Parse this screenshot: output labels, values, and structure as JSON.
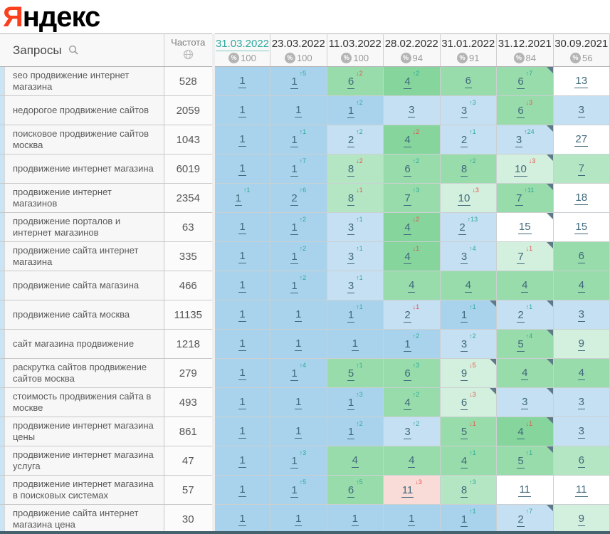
{
  "logo": {
    "ya": "Я",
    "rest": "ндекс"
  },
  "colors": {
    "logo_red": "#fc3f1d",
    "active_date_teal": "#2fa99f",
    "change_up_green": "#2aab97",
    "change_down_red": "#e2564b",
    "top1_blue": "#a9d3ec",
    "top3_light_blue": "#c5e0f3",
    "top10_green": "#98dcab",
    "pale_green": "#d3efdd",
    "drop_pink": "#f9dcd8",
    "scrollbar_dark": "#44616e"
  },
  "table": {
    "queries_header": "Запросы",
    "frequency_header": "Частота",
    "date_columns": [
      {
        "date": "31.03.2022",
        "score": "100",
        "active": true
      },
      {
        "date": "23.03.2022",
        "score": "100",
        "active": false
      },
      {
        "date": "11.03.2022",
        "score": "100",
        "active": false
      },
      {
        "date": "28.02.2022",
        "score": "94",
        "active": false
      },
      {
        "date": "31.01.2022",
        "score": "91",
        "active": false
      },
      {
        "date": "31.12.2021",
        "score": "84",
        "active": false
      },
      {
        "date": "30.09.2021",
        "score": "56",
        "active": false
      }
    ],
    "rows": [
      {
        "query": "seo продвижение интернет магазина",
        "frequency": "528",
        "cells": [
          {
            "p": "1",
            "bg": "b1"
          },
          {
            "p": "1",
            "ch": "5",
            "dir": "up",
            "bg": "b1"
          },
          {
            "p": "6",
            "ch": "2",
            "dir": "down",
            "bg": "g1"
          },
          {
            "p": "4",
            "ch": "2",
            "dir": "up",
            "bg": "g0"
          },
          {
            "p": "6",
            "bg": "g1"
          },
          {
            "p": "6",
            "ch": "7",
            "dir": "up",
            "bg": "g1",
            "corner": true
          },
          {
            "p": "13",
            "bg": "w"
          }
        ]
      },
      {
        "query": "недорогое продвижение сайтов",
        "frequency": "2059",
        "cells": [
          {
            "p": "1",
            "bg": "b1"
          },
          {
            "p": "1",
            "bg": "b1"
          },
          {
            "p": "1",
            "ch": "2",
            "dir": "up",
            "bg": "b1"
          },
          {
            "p": "3",
            "bg": "b2"
          },
          {
            "p": "3",
            "ch": "3",
            "dir": "up",
            "bg": "b2"
          },
          {
            "p": "6",
            "ch": "3",
            "dir": "down",
            "bg": "g1"
          },
          {
            "p": "3",
            "bg": "b2"
          }
        ]
      },
      {
        "query": "поисковое продвижение сайтов москва",
        "frequency": "1043",
        "cells": [
          {
            "p": "1",
            "bg": "b1"
          },
          {
            "p": "1",
            "ch": "1",
            "dir": "up",
            "bg": "b1"
          },
          {
            "p": "2",
            "ch": "2",
            "dir": "up",
            "bg": "b2"
          },
          {
            "p": "4",
            "ch": "2",
            "dir": "down",
            "bg": "g0"
          },
          {
            "p": "2",
            "ch": "1",
            "dir": "up",
            "bg": "b2"
          },
          {
            "p": "3",
            "ch": "24",
            "dir": "up",
            "bg": "b2",
            "corner": true
          },
          {
            "p": "27",
            "bg": "w"
          }
        ]
      },
      {
        "query": "продвижение интернет магазина",
        "frequency": "6019",
        "cells": [
          {
            "p": "1",
            "bg": "b1"
          },
          {
            "p": "1",
            "ch": "7",
            "dir": "up",
            "bg": "b1"
          },
          {
            "p": "8",
            "ch": "2",
            "dir": "down",
            "bg": "g2"
          },
          {
            "p": "6",
            "ch": "2",
            "dir": "up",
            "bg": "g1"
          },
          {
            "p": "8",
            "ch": "2",
            "dir": "up",
            "bg": "g1"
          },
          {
            "p": "10",
            "ch": "3",
            "dir": "down",
            "bg": "g3",
            "corner": true
          },
          {
            "p": "7",
            "bg": "g2"
          }
        ]
      },
      {
        "query": "продвижение интернет магазинов",
        "frequency": "2354",
        "cells": [
          {
            "p": "1",
            "ch": "1",
            "dir": "up",
            "bg": "b1"
          },
          {
            "p": "2",
            "ch": "6",
            "dir": "up",
            "bg": "b1"
          },
          {
            "p": "8",
            "ch": "1",
            "dir": "down",
            "bg": "g2"
          },
          {
            "p": "7",
            "ch": "3",
            "dir": "up",
            "bg": "g1"
          },
          {
            "p": "10",
            "ch": "3",
            "dir": "down",
            "bg": "g3"
          },
          {
            "p": "7",
            "ch": "11",
            "dir": "up",
            "bg": "g1",
            "corner": true
          },
          {
            "p": "18",
            "bg": "w"
          }
        ]
      },
      {
        "query": "продвижение порталов и интернет магазинов",
        "frequency": "63",
        "cells": [
          {
            "p": "1",
            "bg": "b1"
          },
          {
            "p": "1",
            "ch": "2",
            "dir": "up",
            "bg": "b1"
          },
          {
            "p": "3",
            "ch": "1",
            "dir": "up",
            "bg": "b2"
          },
          {
            "p": "4",
            "ch": "2",
            "dir": "down",
            "bg": "g0"
          },
          {
            "p": "2",
            "ch": "13",
            "dir": "up",
            "bg": "b2"
          },
          {
            "p": "15",
            "bg": "w",
            "corner": true
          },
          {
            "p": "15",
            "bg": "w"
          }
        ]
      },
      {
        "query": "продвижение сайта интернет магазина",
        "frequency": "335",
        "cells": [
          {
            "p": "1",
            "bg": "b1"
          },
          {
            "p": "1",
            "ch": "2",
            "dir": "up",
            "bg": "b1"
          },
          {
            "p": "3",
            "ch": "1",
            "dir": "up",
            "bg": "b2"
          },
          {
            "p": "4",
            "ch": "1",
            "dir": "down",
            "bg": "g0"
          },
          {
            "p": "3",
            "ch": "4",
            "dir": "up",
            "bg": "b2"
          },
          {
            "p": "7",
            "ch": "1",
            "dir": "down",
            "bg": "g3",
            "corner": true
          },
          {
            "p": "6",
            "bg": "g1"
          }
        ]
      },
      {
        "query": "продвижение сайта магазина",
        "frequency": "466",
        "cells": [
          {
            "p": "1",
            "bg": "b1"
          },
          {
            "p": "1",
            "ch": "2",
            "dir": "up",
            "bg": "b1"
          },
          {
            "p": "3",
            "ch": "1",
            "dir": "up",
            "bg": "b2"
          },
          {
            "p": "4",
            "bg": "g1"
          },
          {
            "p": "4",
            "bg": "g1"
          },
          {
            "p": "4",
            "bg": "g1"
          },
          {
            "p": "4",
            "bg": "g1"
          }
        ]
      },
      {
        "query": "продвижение сайта москва",
        "frequency": "11135",
        "cells": [
          {
            "p": "1",
            "bg": "b1"
          },
          {
            "p": "1",
            "bg": "b1"
          },
          {
            "p": "1",
            "ch": "1",
            "dir": "up",
            "bg": "b1"
          },
          {
            "p": "2",
            "ch": "1",
            "dir": "down",
            "bg": "b2"
          },
          {
            "p": "1",
            "ch": "1",
            "dir": "up",
            "bg": "b1",
            "corner": true
          },
          {
            "p": "2",
            "ch": "1",
            "dir": "up",
            "bg": "b2",
            "corner": true
          },
          {
            "p": "3",
            "bg": "b2"
          }
        ]
      },
      {
        "query": "сайт магазина продвижение",
        "frequency": "1218",
        "cells": [
          {
            "p": "1",
            "bg": "b1"
          },
          {
            "p": "1",
            "bg": "b1"
          },
          {
            "p": "1",
            "bg": "b1"
          },
          {
            "p": "1",
            "ch": "2",
            "dir": "up",
            "bg": "b1"
          },
          {
            "p": "3",
            "ch": "2",
            "dir": "up",
            "bg": "b2"
          },
          {
            "p": "5",
            "ch": "4",
            "dir": "up",
            "bg": "g1",
            "corner": true
          },
          {
            "p": "9",
            "bg": "g3"
          }
        ]
      },
      {
        "query": "раскрутка сайтов продвижение сайтов москва",
        "frequency": "279",
        "cells": [
          {
            "p": "1",
            "bg": "b1"
          },
          {
            "p": "1",
            "ch": "4",
            "dir": "up",
            "bg": "b1"
          },
          {
            "p": "5",
            "ch": "1",
            "dir": "up",
            "bg": "g1"
          },
          {
            "p": "6",
            "ch": "3",
            "dir": "up",
            "bg": "g1"
          },
          {
            "p": "9",
            "ch": "5",
            "dir": "down",
            "bg": "g3",
            "corner": true
          },
          {
            "p": "4",
            "bg": "g1",
            "corner": true
          },
          {
            "p": "4",
            "bg": "g1"
          }
        ]
      },
      {
        "query": "стоимость продвижения сайта в москве",
        "frequency": "493",
        "cells": [
          {
            "p": "1",
            "bg": "b1"
          },
          {
            "p": "1",
            "bg": "b1"
          },
          {
            "p": "1",
            "ch": "3",
            "dir": "up",
            "bg": "b1"
          },
          {
            "p": "4",
            "ch": "2",
            "dir": "up",
            "bg": "g1"
          },
          {
            "p": "6",
            "ch": "3",
            "dir": "down",
            "bg": "g3",
            "corner": true
          },
          {
            "p": "3",
            "bg": "b2",
            "corner": true
          },
          {
            "p": "3",
            "bg": "b2"
          }
        ]
      },
      {
        "query": "продвижение интернет магазина цены",
        "frequency": "861",
        "cells": [
          {
            "p": "1",
            "bg": "b1"
          },
          {
            "p": "1",
            "bg": "b1"
          },
          {
            "p": "1",
            "ch": "2",
            "dir": "up",
            "bg": "b1"
          },
          {
            "p": "3",
            "ch": "2",
            "dir": "up",
            "bg": "b2"
          },
          {
            "p": "5",
            "ch": "1",
            "dir": "down",
            "bg": "g1"
          },
          {
            "p": "4",
            "ch": "1",
            "dir": "down",
            "bg": "g0",
            "corner": true
          },
          {
            "p": "3",
            "bg": "b2"
          }
        ]
      },
      {
        "query": "продвижение интернет магазина услуга",
        "frequency": "47",
        "cells": [
          {
            "p": "1",
            "bg": "b1"
          },
          {
            "p": "1",
            "ch": "3",
            "dir": "up",
            "bg": "b1"
          },
          {
            "p": "4",
            "bg": "g1"
          },
          {
            "p": "4",
            "bg": "g1"
          },
          {
            "p": "4",
            "ch": "1",
            "dir": "up",
            "bg": "g1"
          },
          {
            "p": "5",
            "ch": "1",
            "dir": "up",
            "bg": "g1",
            "corner": true
          },
          {
            "p": "6",
            "bg": "g2"
          }
        ]
      },
      {
        "query": "продвижение интернет магазина в поисковых системах",
        "frequency": "57",
        "cells": [
          {
            "p": "1",
            "bg": "b1"
          },
          {
            "p": "1",
            "ch": "5",
            "dir": "up",
            "bg": "b1"
          },
          {
            "p": "6",
            "ch": "5",
            "dir": "up",
            "bg": "g1"
          },
          {
            "p": "11",
            "ch": "3",
            "dir": "down",
            "bg": "pk"
          },
          {
            "p": "8",
            "ch": "3",
            "dir": "up",
            "bg": "g2"
          },
          {
            "p": "11",
            "bg": "w"
          },
          {
            "p": "11",
            "bg": "w"
          }
        ]
      },
      {
        "query": "продвижение сайта интернет магазина цена",
        "frequency": "30",
        "cells": [
          {
            "p": "1",
            "bg": "b1"
          },
          {
            "p": "1",
            "bg": "b1"
          },
          {
            "p": "1",
            "bg": "b1"
          },
          {
            "p": "1",
            "bg": "b1"
          },
          {
            "p": "1",
            "ch": "1",
            "dir": "up",
            "bg": "b1"
          },
          {
            "p": "2",
            "ch": "7",
            "dir": "up",
            "bg": "b2",
            "corner": true
          },
          {
            "p": "9",
            "bg": "g3"
          }
        ]
      }
    ]
  }
}
